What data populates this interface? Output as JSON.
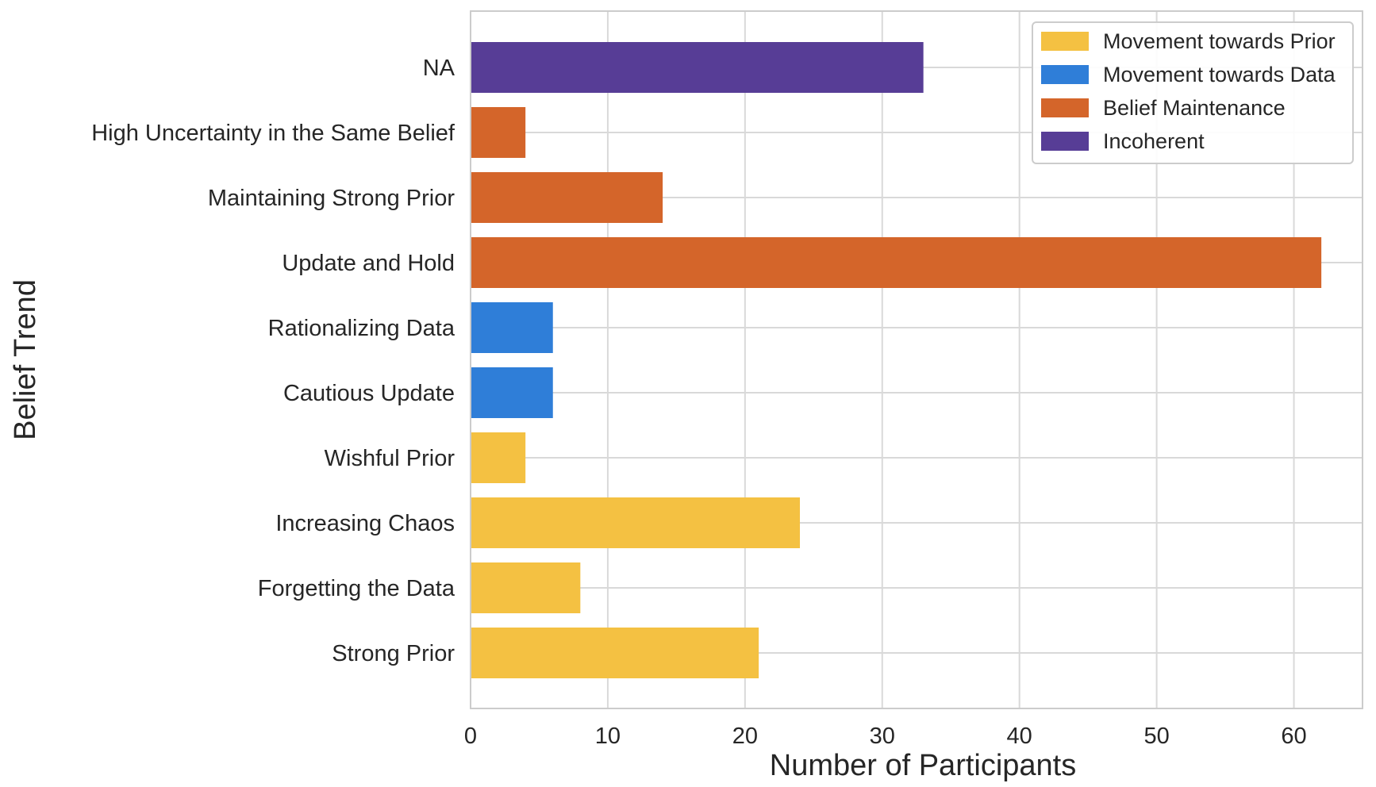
{
  "chart_data": {
    "type": "bar",
    "orientation": "horizontal",
    "xlabel": "Number of Participants",
    "ylabel": "Belief Trend",
    "xlim": [
      0,
      65
    ],
    "xticks": [
      0,
      10,
      20,
      30,
      40,
      50,
      60
    ],
    "grid": true,
    "legend_position": "top-right",
    "categories": [
      "Strong Prior",
      "Forgetting the Data",
      "Increasing Chaos",
      "Wishful Prior",
      "Cautious Update",
      "Rationalizing Data",
      "Update and Hold",
      "Maintaining Strong Prior",
      "High Uncertainty in the Same Belief",
      "NA"
    ],
    "values": [
      21,
      8,
      24,
      4,
      6,
      6,
      62,
      14,
      4,
      33
    ],
    "groups": [
      "Movement towards Prior",
      "Movement towards Prior",
      "Movement towards Prior",
      "Movement towards Prior",
      "Movement towards Data",
      "Movement towards Data",
      "Belief Maintenance",
      "Belief Maintenance",
      "Belief Maintenance",
      "Incoherent"
    ],
    "legend": [
      {
        "name": "Movement towards Prior",
        "color": "#F4C142"
      },
      {
        "name": "Movement towards Data",
        "color": "#2F7ED8"
      },
      {
        "name": "Belief Maintenance",
        "color": "#D4652A"
      },
      {
        "name": "Incoherent",
        "color": "#573D96"
      }
    ]
  }
}
